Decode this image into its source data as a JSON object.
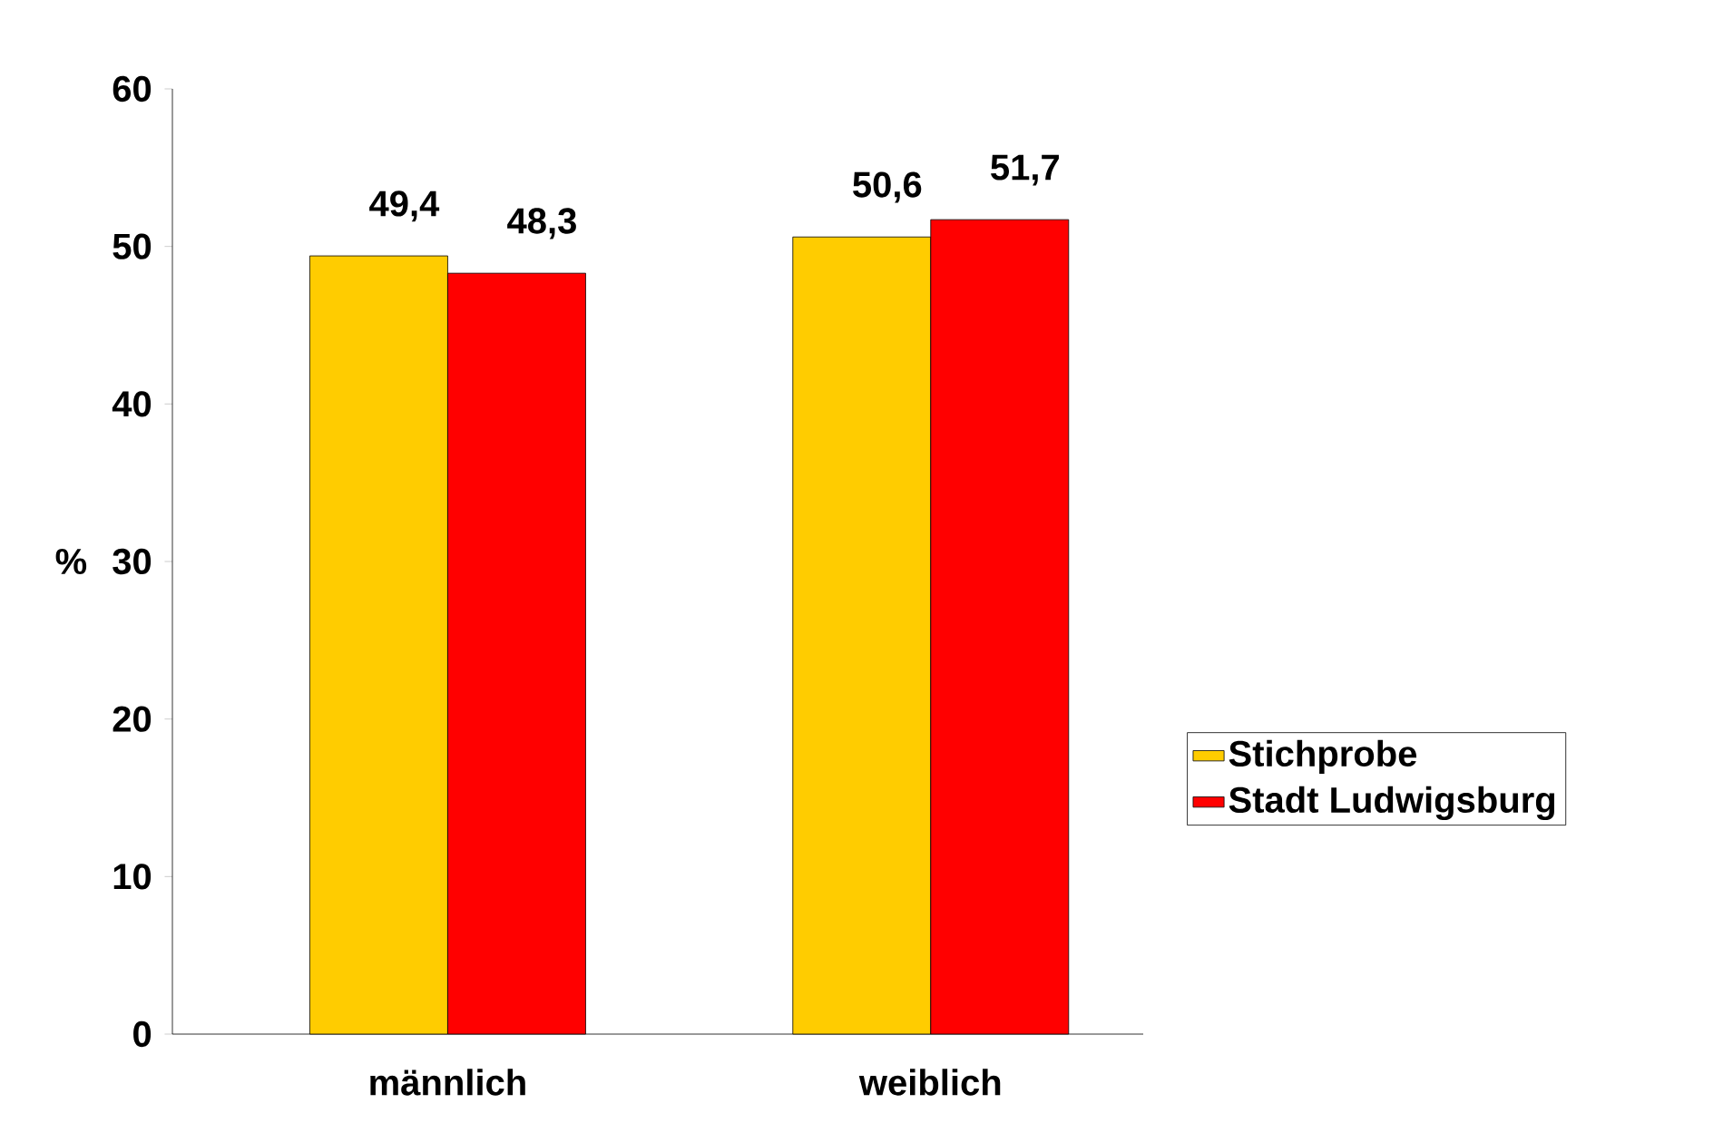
{
  "chart_data": {
    "type": "bar",
    "ylabel": "%",
    "categories": [
      "männlich",
      "weiblich"
    ],
    "series": [
      {
        "name": "Stichprobe",
        "color": "#ffcc00",
        "values": [
          49.4,
          50.6
        ],
        "value_labels": [
          "49,4",
          "50,6"
        ]
      },
      {
        "name": "Stadt Ludwigsburg",
        "color": "#ff0000",
        "values": [
          48.3,
          51.7
        ],
        "value_labels": [
          "48,3",
          "51,7"
        ]
      }
    ],
    "ylim": [
      0,
      60
    ],
    "yticks": [
      0,
      10,
      20,
      30,
      40,
      50,
      60
    ],
    "legend": "right",
    "grid": false
  }
}
